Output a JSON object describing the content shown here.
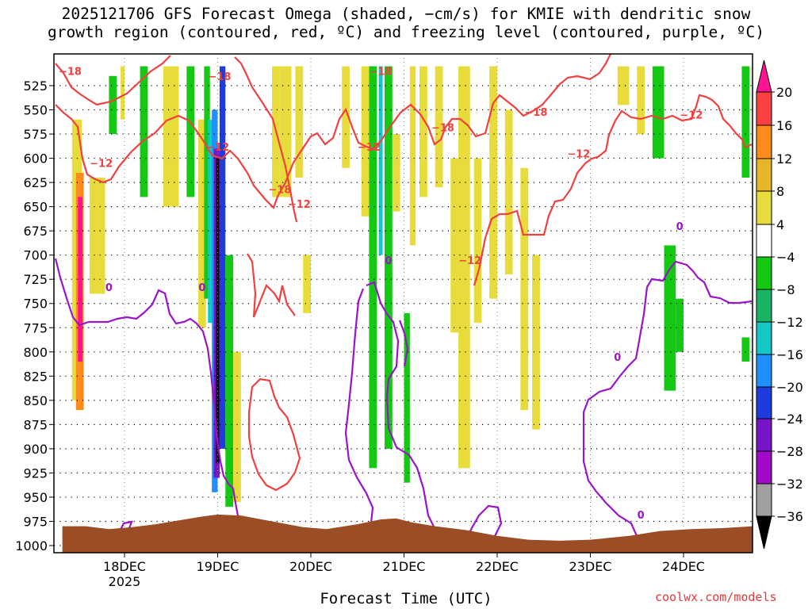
{
  "title": {
    "line1": "2025121706 GFS Forecast Omega (shaded, −cm/s) for KMIE with dendritic snow",
    "line2": "growth region (contoured, red, ºC) and freezing level (contoured, purple, ºC)"
  },
  "xlabel": "Forecast Time (UTC)",
  "credit": "coolwx.com/models",
  "chart_data": {
    "type": "heatmap",
    "title": "2025121706 GFS Forecast Omega (shaded, −cm/s) for KMIE with dendritic snow growth region (contoured, red, ºC) and freezing level (contoured, purple, ºC)",
    "xlabel": "Forecast Time (UTC)",
    "ylabel": "",
    "x_range_hours": [
      -16,
      162
    ],
    "x_ticks": [
      {
        "hour": 0,
        "label": "18DEC",
        "sublabel": "2025"
      },
      {
        "hour": 24,
        "label": "19DEC"
      },
      {
        "hour": 48,
        "label": "20DEC"
      },
      {
        "hour": 72,
        "label": "21DEC"
      },
      {
        "hour": 96,
        "label": "22DEC"
      },
      {
        "hour": 120,
        "label": "23DEC"
      },
      {
        "hour": 144,
        "label": "24DEC"
      }
    ],
    "y_ticks": [
      525,
      550,
      575,
      600,
      625,
      650,
      675,
      700,
      725,
      750,
      775,
      800,
      825,
      850,
      875,
      900,
      925,
      950,
      975,
      1000
    ],
    "y_range_hpa": [
      1010,
      500
    ],
    "grid": true,
    "colorbar": {
      "labels": [
        20,
        16,
        12,
        8,
        4,
        -4,
        -8,
        -12,
        -16,
        -20,
        -24,
        -28,
        -32,
        -36
      ],
      "colors": [
        "#ff1493",
        "#ff4040",
        "#ff8c1a",
        "#e8b428",
        "#e8dc3c",
        "#ffffff",
        "#14c814",
        "#18b464",
        "#14c8c8",
        "#1e90ff",
        "#1e3cdc",
        "#7814c8",
        "#a00ac8",
        "#a0a0a0",
        "#000000"
      ]
    },
    "shading": [
      {
        "t": [
          -13.5,
          -11
        ],
        "p": [
          560,
          850
        ],
        "value": 5
      },
      {
        "t": [
          -12.5,
          -10.5
        ],
        "p": [
          615,
          860
        ],
        "value": 14
      },
      {
        "t": [
          -12,
          -10.8
        ],
        "p": [
          640,
          810
        ],
        "value": 22
      },
      {
        "t": [
          -9,
          -5
        ],
        "p": [
          620,
          740
        ],
        "value": 5
      },
      {
        "t": [
          -4,
          -2
        ],
        "p": [
          515,
          575
        ],
        "value": -6
      },
      {
        "t": [
          -1,
          0
        ],
        "p": [
          505,
          560
        ],
        "value": 5
      },
      {
        "t": [
          4,
          6
        ],
        "p": [
          505,
          640
        ],
        "value": -6
      },
      {
        "t": [
          10,
          14
        ],
        "p": [
          505,
          650
        ],
        "value": 5
      },
      {
        "t": [
          16,
          18
        ],
        "p": [
          505,
          640
        ],
        "value": -6
      },
      {
        "t": [
          19,
          21
        ],
        "p": [
          560,
          775
        ],
        "value": 5
      },
      {
        "t": [
          20.5,
          22
        ],
        "p": [
          505,
          745
        ],
        "value": -7
      },
      {
        "t": [
          21.5,
          23
        ],
        "p": [
          560,
          770
        ],
        "value": -12
      },
      {
        "t": [
          22.5,
          24
        ],
        "p": [
          550,
          945
        ],
        "value": -16
      },
      {
        "t": [
          23,
          24.5
        ],
        "p": [
          590,
          930
        ],
        "value": -26
      },
      {
        "t": [
          23.6,
          24.4
        ],
        "p": [
          600,
          915
        ],
        "value": -38
      },
      {
        "t": [
          24.5,
          26
        ],
        "p": [
          505,
          900
        ],
        "value": -22
      },
      {
        "t": [
          26,
          28
        ],
        "p": [
          700,
          960
        ],
        "value": -6
      },
      {
        "t": [
          28,
          30
        ],
        "p": [
          800,
          955
        ],
        "value": 5
      },
      {
        "t": [
          38,
          40
        ],
        "p": [
          505,
          640
        ],
        "value": 5
      },
      {
        "t": [
          40,
          43
        ],
        "p": [
          505,
          640
        ],
        "value": 5
      },
      {
        "t": [
          44,
          46
        ],
        "p": [
          505,
          620
        ],
        "value": 5
      },
      {
        "t": [
          46,
          48
        ],
        "p": [
          700,
          760
        ],
        "value": 5
      },
      {
        "t": [
          56,
          58
        ],
        "p": [
          505,
          610
        ],
        "value": 5
      },
      {
        "t": [
          61,
          63
        ],
        "p": [
          505,
          660
        ],
        "value": 5
      },
      {
        "t": [
          63,
          65
        ],
        "p": [
          505,
          920
        ],
        "value": -6
      },
      {
        "t": [
          65.5,
          66.5
        ],
        "p": [
          505,
          700
        ],
        "value": -14
      },
      {
        "t": [
          67,
          69
        ],
        "p": [
          505,
          900
        ],
        "value": -6
      },
      {
        "t": [
          69,
          71
        ],
        "p": [
          575,
          655
        ],
        "value": 5
      },
      {
        "t": [
          72,
          73.5
        ],
        "p": [
          760,
          935
        ],
        "value": -6
      },
      {
        "t": [
          73.5,
          75
        ],
        "p": [
          505,
          690
        ],
        "value": 5
      },
      {
        "t": [
          76,
          78
        ],
        "p": [
          505,
          640
        ],
        "value": 5
      },
      {
        "t": [
          80,
          82
        ],
        "p": [
          505,
          630
        ],
        "value": 5
      },
      {
        "t": [
          84,
          86
        ],
        "p": [
          600,
          780
        ],
        "value": 5
      },
      {
        "t": [
          86,
          89
        ],
        "p": [
          505,
          920
        ],
        "value": 5
      },
      {
        "t": [
          90,
          92
        ],
        "p": [
          600,
          770
        ],
        "value": 5
      },
      {
        "t": [
          94,
          96
        ],
        "p": [
          505,
          745
        ],
        "value": 5
      },
      {
        "t": [
          98,
          100
        ],
        "p": [
          550,
          720
        ],
        "value": 5
      },
      {
        "t": [
          102,
          104
        ],
        "p": [
          610,
          860
        ],
        "value": 5
      },
      {
        "t": [
          105,
          107
        ],
        "p": [
          700,
          880
        ],
        "value": 5
      },
      {
        "t": [
          127,
          130
        ],
        "p": [
          505,
          545
        ],
        "value": 5
      },
      {
        "t": [
          132,
          134
        ],
        "p": [
          505,
          575
        ],
        "value": 5
      },
      {
        "t": [
          136,
          139
        ],
        "p": [
          505,
          600
        ],
        "value": -6
      },
      {
        "t": [
          139,
          142
        ],
        "p": [
          690,
          840
        ],
        "value": -6
      },
      {
        "t": [
          142,
          144
        ],
        "p": [
          745,
          800
        ],
        "value": -6
      },
      {
        "t": [
          159,
          161
        ],
        "p": [
          505,
          620
        ],
        "value": -6
      },
      {
        "t": [
          159,
          161
        ],
        "p": [
          785,
          810
        ],
        "value": -6
      }
    ],
    "contours_dendritic": [
      {
        "value": -18,
        "t": [
          -16,
          -13,
          -10,
          -6,
          0,
          5,
          10,
          14,
          18,
          22,
          24
        ]
      },
      {
        "value": -12,
        "t": [
          -16,
          -12,
          -8,
          -3,
          4,
          10,
          16,
          21,
          24
        ]
      }
    ],
    "contour_labels": [
      {
        "value": -18,
        "t": -14,
        "p": 510,
        "color": "red"
      },
      {
        "value": -18,
        "t": 24.5,
        "p": 515,
        "color": "red"
      },
      {
        "value": -12,
        "t": -6,
        "p": 605,
        "color": "red"
      },
      {
        "value": -12,
        "t": 24,
        "p": 588,
        "color": "red"
      },
      {
        "value": -18,
        "t": 40,
        "p": 632,
        "color": "red"
      },
      {
        "value": -12,
        "t": 45,
        "p": 647,
        "color": "red"
      },
      {
        "value": -12,
        "t": 63,
        "p": 588,
        "color": "red"
      },
      {
        "value": -18,
        "t": 66,
        "p": 510,
        "color": "red"
      },
      {
        "value": -18,
        "t": 82,
        "p": 568,
        "color": "red"
      },
      {
        "value": -12,
        "t": 89,
        "p": 705,
        "color": "red"
      },
      {
        "value": -18,
        "t": 106,
        "p": 552,
        "color": "red"
      },
      {
        "value": -12,
        "t": 117,
        "p": 595,
        "color": "red"
      },
      {
        "value": -12,
        "t": 146,
        "p": 555,
        "color": "red"
      },
      {
        "value": 0,
        "t": -4,
        "p": 733,
        "color": "purple"
      },
      {
        "value": 0,
        "t": 20,
        "p": 733,
        "color": "purple"
      },
      {
        "value": 0,
        "t": 68,
        "p": 705,
        "color": "purple"
      },
      {
        "value": 0,
        "t": 127,
        "p": 805,
        "color": "purple"
      },
      {
        "value": 0,
        "t": 133,
        "p": 968,
        "color": "purple"
      },
      {
        "value": 0,
        "t": 143,
        "p": 670,
        "color": "purple"
      }
    ],
    "terrain_surface_hpa": [
      {
        "t": -16,
        "p": 980
      },
      {
        "t": -10,
        "p": 980
      },
      {
        "t": -4,
        "p": 983
      },
      {
        "t": 2,
        "p": 981
      },
      {
        "t": 8,
        "p": 978
      },
      {
        "t": 14,
        "p": 974
      },
      {
        "t": 20,
        "p": 970
      },
      {
        "t": 24,
        "p": 968
      },
      {
        "t": 30,
        "p": 969
      },
      {
        "t": 38,
        "p": 975
      },
      {
        "t": 46,
        "p": 981
      },
      {
        "t": 52,
        "p": 983
      },
      {
        "t": 60,
        "p": 978
      },
      {
        "t": 66,
        "p": 973
      },
      {
        "t": 70,
        "p": 972
      },
      {
        "t": 74,
        "p": 976
      },
      {
        "t": 80,
        "p": 980
      },
      {
        "t": 88,
        "p": 984
      },
      {
        "t": 96,
        "p": 990
      },
      {
        "t": 104,
        "p": 994
      },
      {
        "t": 112,
        "p": 995
      },
      {
        "t": 120,
        "p": 994
      },
      {
        "t": 130,
        "p": 990
      },
      {
        "t": 138,
        "p": 985
      },
      {
        "t": 146,
        "p": 983
      },
      {
        "t": 154,
        "p": 982
      },
      {
        "t": 162,
        "p": 980
      }
    ]
  }
}
